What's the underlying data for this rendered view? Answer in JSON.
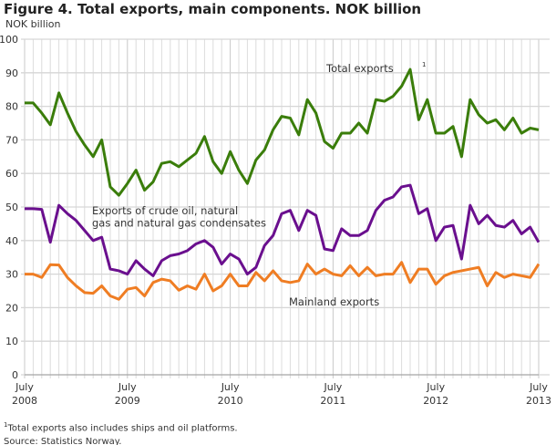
{
  "chart_data": {
    "type": "line",
    "title": "Figure 4. Total exports, main components. NOK billion",
    "ylabel": "NOK billion",
    "ylim": [
      0,
      100
    ],
    "yticks": [
      0,
      10,
      20,
      30,
      40,
      50,
      60,
      70,
      80,
      90,
      100
    ],
    "x_start": "July 2008",
    "x_end": "July 2013",
    "x_frequency": "monthly",
    "xtick_labels": [
      [
        "July",
        "2008"
      ],
      [
        "July",
        "2009"
      ],
      [
        "July",
        "2010"
      ],
      [
        "July",
        "2011"
      ],
      [
        "July",
        "2012"
      ],
      [
        "July",
        "2013"
      ]
    ],
    "grid": true,
    "series": [
      {
        "name": "Total exports",
        "sup": "1",
        "color": "#3a7d0a",
        "values": [
          81,
          81,
          78,
          74.5,
          84,
          78,
          72.5,
          68.5,
          65,
          70,
          56,
          53.5,
          57,
          61,
          55,
          57.5,
          63,
          63.5,
          62,
          64,
          66,
          71,
          63.5,
          60,
          66.5,
          61,
          57,
          64,
          67,
          73,
          77,
          76.5,
          71.5,
          82,
          78,
          69.5,
          67.5,
          72,
          72,
          75,
          72,
          82,
          81.5,
          83,
          86,
          91,
          76,
          82,
          72,
          72,
          74,
          65,
          82,
          77.5,
          75,
          76,
          73,
          76.5,
          72,
          73.5,
          73
        ]
      },
      {
        "name": "Exports of crude oil, natural gas and natural gas condensates",
        "label_lines": [
          "Exports of crude oil, natural",
          "gas and natural gas condensates"
        ],
        "color": "#6a0f8e",
        "values": [
          49.5,
          49.5,
          49.3,
          39.5,
          50.5,
          48,
          46,
          43,
          40,
          41,
          31.5,
          31,
          30,
          34,
          31.5,
          29.5,
          34,
          35.5,
          36,
          37,
          39,
          40,
          38,
          33,
          36,
          34.5,
          30,
          32,
          38.5,
          41.5,
          48,
          49,
          43,
          49,
          47.5,
          37.5,
          37,
          43.5,
          41.5,
          41.5,
          43,
          49,
          52,
          53,
          56,
          56.5,
          48,
          49.5,
          40,
          44,
          44.5,
          34.5,
          50.5,
          45,
          47.5,
          44.5,
          44,
          46,
          42,
          44,
          39.5
        ]
      },
      {
        "name": "Mainland exports",
        "color": "#ef7d23",
        "values": [
          30,
          30,
          29,
          32.8,
          32.7,
          29,
          26.5,
          24.5,
          24.3,
          26.5,
          23.5,
          22.5,
          25.5,
          26,
          23.5,
          27.5,
          28.5,
          28,
          25.2,
          26.5,
          25.5,
          30,
          25,
          26.5,
          30,
          26.5,
          26.5,
          30.5,
          28,
          31,
          28,
          27.5,
          28,
          33,
          30,
          31.5,
          30,
          29.5,
          32.5,
          29.5,
          32,
          29.5,
          30,
          30,
          33.5,
          27.5,
          31.5,
          31.5,
          27,
          29.5,
          30.5,
          31,
          31.5,
          32,
          26.5,
          30.5,
          29,
          30,
          29.5,
          29,
          33
        ]
      }
    ],
    "footnote": "Total exports also includes ships and oil platforms.",
    "footnote_mark": "1",
    "source": "Source: Statistics Norway."
  }
}
